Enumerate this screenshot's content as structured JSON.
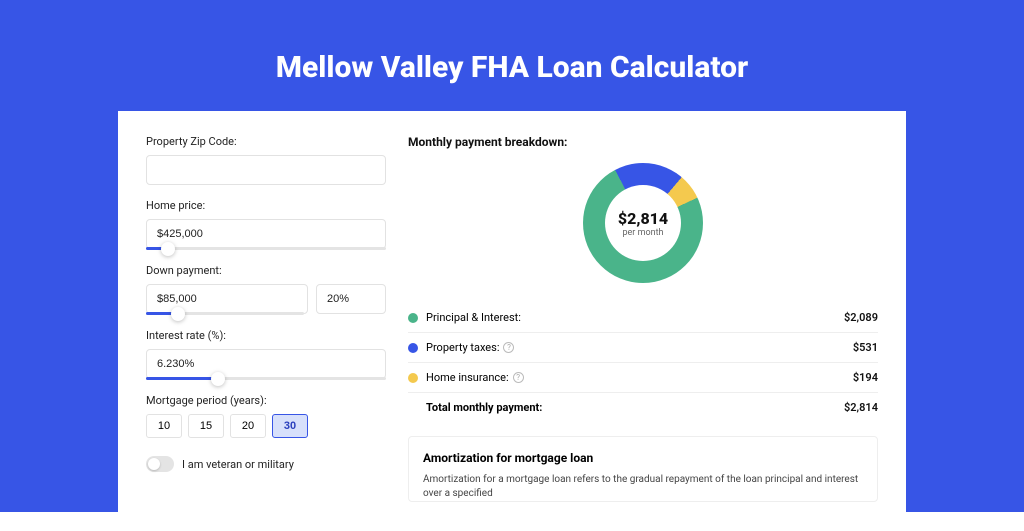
{
  "page": {
    "title": "Mellow Valley FHA Loan Calculator",
    "background_color": "#3755e6"
  },
  "form": {
    "zip": {
      "label": "Property Zip Code:",
      "value": ""
    },
    "home_price": {
      "label": "Home price:",
      "value": "$425,000",
      "slider_percent": 9
    },
    "down_payment": {
      "label": "Down payment:",
      "value": "$85,000",
      "percent_value": "20%",
      "slider_percent": 20
    },
    "interest_rate": {
      "label": "Interest rate (%):",
      "value": "6.230%",
      "slider_percent": 30
    },
    "mortgage_period": {
      "label": "Mortgage period (years):",
      "options": [
        "10",
        "15",
        "20",
        "30"
      ],
      "selected": "30"
    },
    "veteran": {
      "label": "I am veteran or military",
      "value": false
    }
  },
  "breakdown": {
    "title": "Monthly payment breakdown:",
    "donut": {
      "amount": "$2,814",
      "sub": "per month",
      "slices": [
        {
          "label": "Principal & Interest",
          "value": 2089,
          "color": "#4ab48a",
          "display": "$2,089"
        },
        {
          "label": "Property taxes",
          "value": 531,
          "color": "#3755e6",
          "display": "$531",
          "info": true
        },
        {
          "label": "Home insurance",
          "value": 194,
          "color": "#f4c94e",
          "display": "$194",
          "info": true
        }
      ]
    },
    "total": {
      "label": "Total monthly payment:",
      "value": "$2,814"
    }
  },
  "amortization": {
    "title": "Amortization for mortgage loan",
    "text": "Amortization for a mortgage loan refers to the gradual repayment of the loan principal and interest over a specified"
  }
}
